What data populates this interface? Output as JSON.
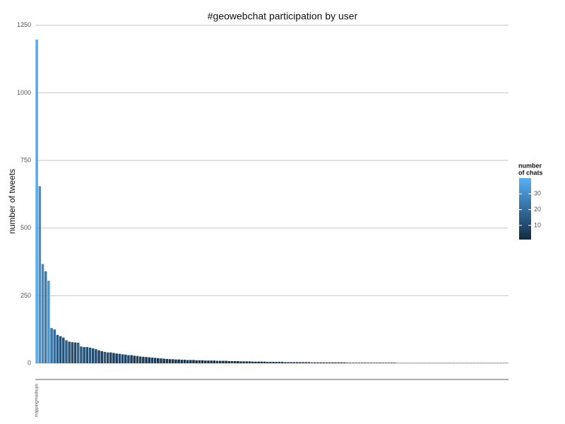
{
  "chart_data": {
    "type": "bar",
    "title": "#geowebchat participation by user",
    "ylabel": "number of tweets",
    "ylim": [
      -60,
      1265
    ],
    "yticks": [
      0,
      250,
      500,
      750,
      1000,
      1250
    ],
    "grid": true,
    "legend_title": [
      "number",
      "of chats"
    ],
    "color_low": "#132B43",
    "color_high": "#56B1F7",
    "colorlim": [
      1,
      40
    ],
    "colorticks": [
      10,
      20,
      30
    ],
    "categories": [
      "mappingmashups",
      null,
      null,
      null,
      null,
      null,
      null,
      null,
      null,
      null,
      null,
      null,
      null,
      null,
      null,
      null,
      null,
      null,
      null,
      null,
      null,
      null,
      null,
      null,
      null,
      null,
      null,
      null,
      null,
      null,
      null,
      null,
      null,
      null,
      null,
      null,
      null,
      null,
      null,
      null,
      null,
      null,
      null,
      null,
      null,
      null,
      null,
      null,
      null,
      null,
      null,
      null,
      null,
      null,
      null,
      null,
      null,
      null,
      null,
      null,
      null,
      null,
      null,
      null,
      null,
      null,
      null,
      null,
      null,
      null,
      null,
      null,
      null,
      null,
      null,
      null,
      null,
      null,
      null,
      null,
      null,
      null,
      null,
      null,
      null,
      null,
      null,
      null,
      null,
      null,
      null,
      null,
      null,
      null,
      null,
      null,
      null,
      null,
      null,
      null,
      null,
      null,
      null,
      null,
      null,
      null,
      null,
      null,
      null,
      null,
      null,
      null,
      null,
      null,
      null,
      null,
      null,
      null,
      null,
      null,
      null,
      null,
      null,
      null,
      null,
      null,
      null,
      null,
      null,
      null,
      null,
      null,
      null,
      null,
      null,
      null,
      null,
      null,
      null,
      null,
      null,
      null,
      null,
      null,
      null,
      null,
      null,
      null,
      null,
      null,
      null,
      null,
      null,
      null,
      null,
      null,
      null,
      null,
      null,
      null
    ],
    "values": [
      1197,
      655,
      367,
      340,
      305,
      130,
      125,
      105,
      100,
      95,
      85,
      80,
      78,
      77,
      76,
      62,
      60,
      60,
      58,
      55,
      52,
      48,
      45,
      42,
      40,
      40,
      38,
      36,
      35,
      33,
      32,
      30,
      30,
      28,
      27,
      25,
      24,
      23,
      22,
      21,
      20,
      19,
      18,
      17,
      16,
      15,
      15,
      14,
      14,
      13,
      13,
      12,
      12,
      12,
      11,
      11,
      11,
      10,
      10,
      10,
      10,
      9,
      9,
      9,
      9,
      8,
      8,
      8,
      8,
      7,
      7,
      7,
      7,
      6,
      6,
      6,
      6,
      6,
      5,
      5,
      5,
      5,
      5,
      5,
      4,
      4,
      4,
      4,
      4,
      4,
      4,
      4,
      4,
      3,
      3,
      3,
      3,
      3,
      3,
      3,
      3,
      3,
      3,
      3,
      3,
      2,
      2,
      2,
      2,
      2,
      2,
      2,
      2,
      2,
      2,
      2,
      2,
      2,
      2,
      2,
      2,
      2,
      1,
      1,
      1,
      1,
      1,
      1,
      1,
      1,
      1,
      1,
      1,
      1,
      1,
      1,
      1,
      1,
      1,
      1,
      1,
      1,
      1,
      1,
      1,
      1,
      1,
      1,
      1,
      1,
      1,
      1,
      1,
      1,
      1,
      1,
      1,
      1,
      1,
      1
    ],
    "chats": [
      38,
      30,
      28,
      24,
      32,
      22,
      20,
      14,
      12,
      13,
      16,
      14,
      12,
      10,
      18,
      15,
      12,
      11,
      13,
      10,
      12,
      9,
      8,
      14,
      10,
      9,
      8,
      7,
      11,
      9,
      8,
      10,
      7,
      6,
      9,
      8,
      7,
      6,
      5,
      7,
      6,
      5,
      7,
      6,
      5,
      4,
      6,
      5,
      4,
      5,
      4,
      5,
      4,
      3,
      4,
      5,
      3,
      4,
      3,
      4,
      3,
      4,
      3,
      3,
      2,
      3,
      4,
      3,
      2,
      3,
      3,
      2,
      3,
      2,
      3,
      2,
      2,
      3,
      2,
      2,
      2,
      3,
      2,
      2,
      2,
      1,
      2,
      2,
      1,
      2,
      2,
      1,
      2,
      2,
      1,
      1,
      2,
      1,
      1,
      2,
      1,
      2,
      1,
      1,
      1,
      1,
      1,
      2,
      1,
      1,
      1,
      1,
      1,
      1,
      1,
      1,
      1,
      1,
      1,
      1,
      1,
      1,
      1,
      1,
      1,
      1,
      1,
      1,
      1,
      1,
      1,
      1,
      1,
      1,
      1,
      1,
      1,
      1,
      1,
      1,
      1,
      1,
      1,
      1,
      1,
      1,
      1,
      1,
      1,
      1,
      1,
      1,
      1,
      1,
      1,
      1,
      1,
      1,
      1,
      1
    ]
  }
}
